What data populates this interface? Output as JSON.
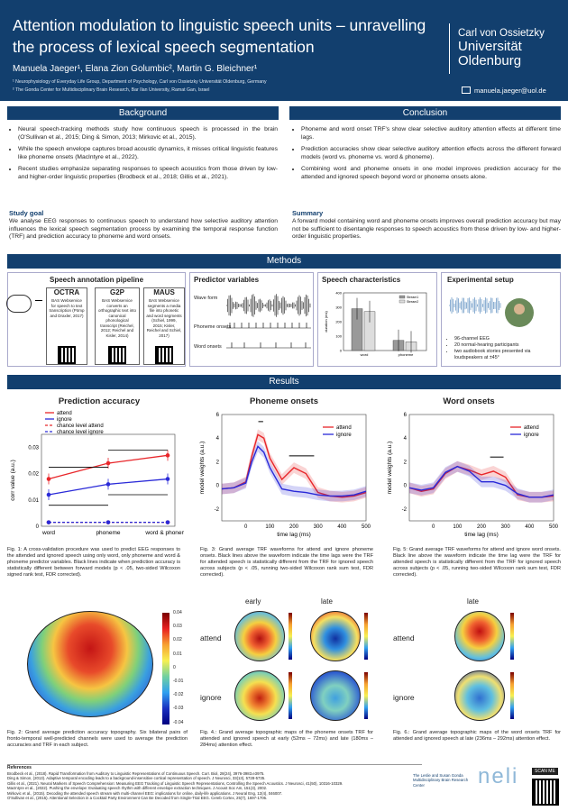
{
  "header": {
    "title": "Attention modulation to linguistic speech units – unravelling the process of lexical speech segmentation",
    "authors": "Manuela Jaeger¹, Elana Zion Golumbic², Martin G. Bleichner¹",
    "aff1": "¹ Neurophysiology of Everyday Life Group, Department of Psychology, Carl von Ossietzky Universität Oldenburg, Germany",
    "aff2": "² The Gonda Center for Multidisciplinary Brain Research, Bar Ilan University, Ramat Gan, Israel",
    "uni1": "Carl von Ossietzky",
    "uni2": "Universität",
    "uni3": "Oldenburg",
    "email": "manuela.jaeger@uol.de"
  },
  "background": {
    "heading": "Background",
    "bullets": [
      "Neural speech-tracking methods study how continuous speech is processed in the brain (O'Sullivan et al., 2015; Ding & Simon, 2013; Mirkovic et al., 2015).",
      "While the speech envelope captures broad acoustic dynamics, it misses critical linguistic features like phoneme onsets (MacIntyre et al., 2022).",
      "Recent studies emphasize separating responses to speech acoustics from those driven by low- and higher-order linguistic properties (Brodbeck et al., 2018; Gillis et al., 2021)."
    ],
    "goal_heading": "Study goal",
    "goal": "We analyse EEG responses to continuous speech to understand how selective auditory attention influences the lexical speech segmentation process by examining the temporal response function (TRF) and prediction accuracy to phoneme and word onsets."
  },
  "conclusion": {
    "heading": "Conclusion",
    "bullets": [
      "Phoneme and word onset TRF's show clear selective auditory attention effects at different time lags.",
      "Prediction accuracies show clear selective auditory attention effects across the different forward models (word vs. phoneme vs. word & phoneme).",
      "Combining word and phoneme onsets in one model improves prediction accuracy for the attended and ignored speech beyond word or phoneme onsets alone."
    ],
    "summary_heading": "Summary",
    "summary": "A forward model containing word and phoneme onsets improves overall prediction accuracy but may not be sufficient to disentangle responses to speech acoustics from those driven by low- and higher-order linguistic properties."
  },
  "methods": {
    "heading": "Methods",
    "pipeline_title": "Speech annotation pipeline",
    "tools": [
      {
        "name": "OCTRA",
        "desc": "BAS Webservice for speech to text transcription (Pömp and Draxler, 2017)"
      },
      {
        "name": "G2P",
        "desc": "BAS Webservice converts an orthographic text into canonical phonological transcript (Reichel, 2012; Reichel and Kisler, 2014)"
      },
      {
        "name": "MAUS",
        "desc": "BAS Webservice segments a media file into phonetic and word segments (Schiel, 1999, 2015; Kisler, Reichel and Schiel, 2017)"
      }
    ],
    "predictor_title": "Predictor variables",
    "predictors": [
      "Wave form",
      "Phoneme onsets",
      "Word onsets"
    ],
    "speech_title": "Speech characteristics",
    "setup_title": "Experimental setup",
    "setup_items": [
      "96-channel EEG",
      "20 normal-hearing participants",
      "two audiobook stories presented via loudspeakers at ±45°"
    ]
  },
  "results": {
    "heading": "Results",
    "fig1_title": "Prediction accuracy",
    "fig3_title": "Phoneme onsets",
    "fig5_title": "Word onsets",
    "fig1_cap": "Fig. 1: A cross-validation procedure was used to predict EEG responses to the attended and ignored speech using only word, only phoneme and word & phoneme predictor variables. Black lines indicate when prediction accuracy is statistically different between forward models (p < .05, two-sided Wilcoxon signed rank test, FDR corrected).",
    "fig3_cap": "Fig. 3: Grand average TRF waveforms for attend and ignore phoneme onsets. Black lines above the waveform indicate the time lags were the TRF for attended speech is statistically different from the TRF for ignored speech across subjects (p < .05, running two-sided Wilcoxon rank sum test, FDR corrected).",
    "fig5_cap": "Fig. 5: Grand average TRF waveforms for attend and ignore word onsets. Black line above the waveform indicate the time lag were the TRF for attended speech is statistically different from the TRF for ignored speech across subjects (p < .05, running two-sided Wilcoxon rank sum test, FDR corrected).",
    "fig2_cap": "Fig. 2: Grand average prediction accuracy topography. Six bilateral pairs of fronto-temporal well-predicted channels were used to average the prediction accuracies and TRF in each subject.",
    "fig4_cap": "Fig. 4.: Grand average topographic maps of the phoneme onsets TRF for attended and ignored speech at early (52ms – 72ms) and late (180ms – 284ms) attention effect.",
    "fig6_cap": "Fig. 6.: Grand average topographic maps of the word onsets TRF for attended and ignored speech at late (236ms – 292ms) attention effect.",
    "early": "early",
    "late": "late",
    "attend": "attend",
    "ignore": "ignore",
    "cbar_ticks": [
      "0.04",
      "0.03",
      "0.02",
      "0.01",
      "0",
      "-0.01",
      "-0.02",
      "-0.03",
      "-0.04"
    ]
  },
  "references": {
    "heading": "References",
    "items": [
      "Brodbeck et al., (2018). Rapid Transformation from Auditory to Linguistic Representations of Continuous Speech. Curr. Biol, 28(24), 3976-3983.e3975.",
      "Ding & Simon, (2013). Adaptive temporal encoding leads to a background-insensitive cortical representation of speech. J Neurosci, 33(13), 5728-5735.",
      "Gillis et al., (2021). Neural Markers of Speech Comprehension: Measuring EEG Tracking of Linguistic Speech Representations, Controlling the Speech Acoustics. J Neurosci, 41(50), 10316-10329.",
      "MacIntyre et al., (2022). Pushing the envelope: Evaluating speech rhythm with different envelope extraction techniques. J Acoust Soc Am, 151(3), 2002.",
      "Mirkovic et al., (2015). Decoding the attended speech stream with multi-channel EEG: implications for online, daily-life applications. J Neural Eng, 12(4), 046007.",
      "O'Sullivan et al., (2015). Attentional Selection in a Cocktail Party Environment Can Be Decoded from Single-Trial EEG. Cereb Cortex, 25(7), 1697-1706."
    ]
  },
  "footer": {
    "gonda": "The Leslie and Susan Gonda Multidisciplinary Brain Research Center",
    "neli": "neli",
    "scan": "SCAN ME"
  },
  "chart_data": [
    {
      "type": "line",
      "title": "Prediction accuracy",
      "categories": [
        "word",
        "phoneme",
        "word & phoneme"
      ],
      "ylabel": "corr value (a.u.)",
      "ylim": [
        0,
        0.035
      ],
      "yticks": [
        "0",
        "0.01",
        "0.02",
        "0.03"
      ],
      "series": [
        {
          "name": "attend",
          "values": [
            0.018,
            0.024,
            0.027
          ],
          "color": "#e8262a"
        },
        {
          "name": "ignore",
          "values": [
            0.012,
            0.016,
            0.018
          ],
          "color": "#2a2ad8"
        },
        {
          "name": "chance level attend",
          "values": [
            0.0015,
            0.0015,
            0.0015
          ],
          "color": "#e8262a"
        },
        {
          "name": "chance level ignore",
          "values": [
            0.0015,
            0.0015,
            0.0015
          ],
          "color": "#2a2ad8"
        }
      ]
    },
    {
      "type": "line",
      "title": "Phoneme onsets",
      "xlabel": "time lag (ms)",
      "ylabel": "model weights (a.u.)",
      "xlim": [
        -100,
        500
      ],
      "ylim": [
        -3,
        6
      ],
      "xticks": [
        "0",
        "100",
        "200",
        "300",
        "400",
        "500"
      ],
      "yticks": [
        "-2",
        "0",
        "2",
        "4",
        "6"
      ],
      "x": [
        -100,
        -50,
        0,
        25,
        50,
        75,
        100,
        150,
        200,
        250,
        300,
        350,
        400,
        450,
        500
      ],
      "series": [
        {
          "name": "attend",
          "values": [
            -0.3,
            -0.2,
            0.3,
            2.5,
            4.3,
            4.0,
            2.3,
            0.5,
            1.5,
            1.0,
            -0.6,
            -0.9,
            -1.0,
            -0.9,
            -0.6
          ],
          "color": "#e8262a"
        },
        {
          "name": "ignore",
          "values": [
            -0.3,
            -0.2,
            0.2,
            2.0,
            3.3,
            2.8,
            1.5,
            -0.3,
            -0.5,
            -0.6,
            -0.8,
            -0.9,
            -0.9,
            -0.8,
            -0.5
          ],
          "color": "#2a2ad8"
        }
      ]
    },
    {
      "type": "line",
      "title": "Word onsets",
      "xlabel": "time lag (ms)",
      "ylabel": "model weights (a.u.)",
      "xlim": [
        -100,
        500
      ],
      "ylim": [
        -3,
        6
      ],
      "xticks": [
        "0",
        "100",
        "200",
        "300",
        "400",
        "500"
      ],
      "yticks": [
        "-2",
        "0",
        "2",
        "4",
        "6"
      ],
      "x": [
        -100,
        -50,
        0,
        50,
        100,
        150,
        200,
        250,
        300,
        350,
        400,
        450,
        500
      ],
      "series": [
        {
          "name": "attend",
          "values": [
            -0.2,
            -0.5,
            -0.3,
            1.0,
            1.6,
            1.3,
            0.9,
            1.2,
            0.7,
            -0.8,
            -1.0,
            -1.0,
            -0.9
          ],
          "color": "#e8262a"
        },
        {
          "name": "ignore",
          "values": [
            -0.2,
            -0.4,
            -0.2,
            1.1,
            1.6,
            1.2,
            0.3,
            0.3,
            0.0,
            -0.7,
            -1.0,
            -1.0,
            -0.8
          ],
          "color": "#2a2ad8"
        }
      ]
    },
    {
      "type": "bar",
      "title": "",
      "categories": [
        "word",
        "phoneme"
      ],
      "ylabel": "duration (ms)",
      "ylim": [
        0,
        400
      ],
      "yticks": [
        "0",
        "100",
        "200",
        "300",
        "400"
      ],
      "series": [
        {
          "name": "Stream1",
          "values": [
            290,
            70
          ],
          "color": "#999999"
        },
        {
          "name": "Stream2",
          "values": [
            270,
            60
          ],
          "color": "#dddddd"
        }
      ]
    }
  ]
}
